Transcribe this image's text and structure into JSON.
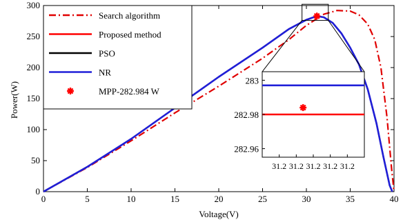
{
  "chart_data": {
    "type": "line",
    "xlabel": "Voltage(V)",
    "ylabel": "Power(W)",
    "xlim": [
      0,
      40
    ],
    "ylim": [
      0,
      300
    ],
    "xticks": [
      0,
      5,
      10,
      15,
      20,
      25,
      30,
      35,
      40
    ],
    "yticks": [
      0,
      50,
      100,
      150,
      200,
      250,
      300
    ],
    "grid": false,
    "legend_position": "top-left",
    "series": [
      {
        "name": "Search algorithm",
        "color": "#e00000",
        "style": "dash-dot",
        "x": [
          0,
          5,
          10,
          15,
          20,
          25,
          28,
          30,
          32,
          33.5,
          35,
          36,
          37,
          37.8,
          38.5,
          39.2,
          39.7,
          40
        ],
        "y": [
          0,
          39,
          82,
          127,
          170,
          215,
          245,
          268,
          286,
          292,
          291,
          285,
          270,
          245,
          200,
          120,
          40,
          0
        ]
      },
      {
        "name": "Proposed method",
        "color": "#ff0000",
        "style": "solid",
        "x": [
          0,
          5,
          10,
          15,
          20,
          25,
          28,
          30,
          31.2,
          32,
          33,
          34,
          35,
          36,
          37,
          38,
          38.8,
          39.5,
          39.8
        ],
        "y": [
          0,
          40,
          85,
          135,
          185,
          232,
          262,
          277,
          283,
          281,
          272,
          255,
          232,
          205,
          165,
          110,
          55,
          10,
          0
        ]
      },
      {
        "name": "PSO",
        "color": "#000000",
        "style": "solid",
        "x": [
          0,
          5,
          10,
          15,
          20,
          25,
          28,
          30,
          31.2,
          32,
          33,
          34,
          35,
          36,
          37,
          38,
          38.8,
          39.5,
          39.8
        ],
        "y": [
          0,
          40,
          85,
          135,
          185,
          232,
          262,
          277,
          283,
          281,
          272,
          255,
          232,
          205,
          165,
          110,
          55,
          10,
          0
        ]
      },
      {
        "name": "NR",
        "color": "#1f1fd8",
        "style": "solid",
        "x": [
          0,
          5,
          10,
          15,
          20,
          25,
          28,
          30,
          31.2,
          32,
          33,
          34,
          35,
          36,
          37,
          38,
          38.8,
          39.5,
          39.8
        ],
        "y": [
          0,
          40,
          85,
          135,
          185,
          232,
          262,
          277,
          283,
          281,
          272,
          255,
          232,
          205,
          165,
          110,
          55,
          10,
          0
        ]
      }
    ],
    "mpp_marker": {
      "label": "MPP-282.984 W",
      "color": "#ff0000",
      "x": 31.2,
      "y": 282.984
    },
    "inset": {
      "xlim": [
        31.18,
        31.24
      ],
      "ylim": [
        282.955,
        283.005
      ],
      "xtick_labels": [
        "31.2",
        "31.2",
        "31.2",
        "31.2",
        "31.2"
      ],
      "xtick_values": [
        31.19,
        31.2,
        31.21,
        31.22,
        31.23
      ],
      "yticks": [
        282.96,
        282.98,
        283
      ],
      "ytick_labels": [
        "282.96",
        "282.98",
        "283"
      ],
      "nr_level": 282.997,
      "proposed_level": 282.98,
      "marker": {
        "x": 31.204,
        "y": 282.984
      },
      "source_x_range": [
        29.5,
        32.5
      ],
      "source_y_range": [
        276,
        302
      ]
    }
  }
}
